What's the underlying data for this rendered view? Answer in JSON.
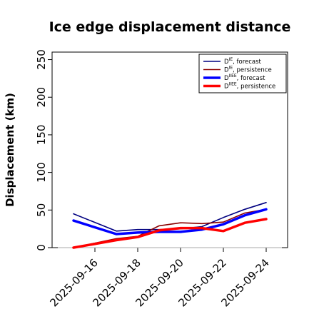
{
  "chart_data": {
    "type": "line",
    "title": "Ice edge displacement distance",
    "ylabel": "Displacement (km)",
    "xlabel": "",
    "ylim": [
      0,
      260
    ],
    "yticks": [
      0,
      50,
      100,
      150,
      200,
      250
    ],
    "xlim": [
      "2025-09-14",
      "2025-09-25"
    ],
    "xticks": [
      "2025-09-16",
      "2025-09-18",
      "2025-09-20",
      "2025-09-22",
      "2025-09-24"
    ],
    "highlight_tick": "2025-09-16",
    "highlight_color": "#228b22",
    "x": [
      "2025-09-15",
      "2025-09-17",
      "2025-09-18",
      "2025-09-19",
      "2025-09-20",
      "2025-09-21",
      "2025-09-22",
      "2025-09-23",
      "2025-09-24"
    ],
    "series": [
      {
        "name": "D^IE, forecast",
        "label_base": "D",
        "label_sup": "IE",
        "label_rest": ", forecast",
        "color": "#000080",
        "width": 1.6,
        "values": [
          45,
          22,
          24,
          24,
          25,
          28,
          40,
          51,
          60
        ]
      },
      {
        "name": "D^IE, persistence",
        "label_base": "D",
        "label_sup": "IE",
        "label_rest": ", persistence",
        "color": "#8b0000",
        "width": 1.6,
        "values": [
          0,
          12,
          15,
          29,
          33,
          32,
          34,
          46,
          51
        ]
      },
      {
        "name": "D^IIEE, forecast",
        "label_base": "D",
        "label_sup": "IIEE",
        "label_rest": ", forecast",
        "color": "#0000ff",
        "width": 3.5,
        "values": [
          36,
          18,
          20,
          21,
          21,
          24,
          31,
          43,
          51
        ]
      },
      {
        "name": "D^IIEE, persistence",
        "label_base": "D",
        "label_sup": "IIEE",
        "label_rest": ", persistence",
        "color": "#ff0000",
        "width": 3.5,
        "values": [
          0,
          10,
          14,
          23,
          26,
          26,
          22,
          33,
          38
        ]
      }
    ],
    "reference_line": {
      "y": 0,
      "color": "#aaaaaa"
    },
    "legend_position": "top-right",
    "grid": false
  }
}
